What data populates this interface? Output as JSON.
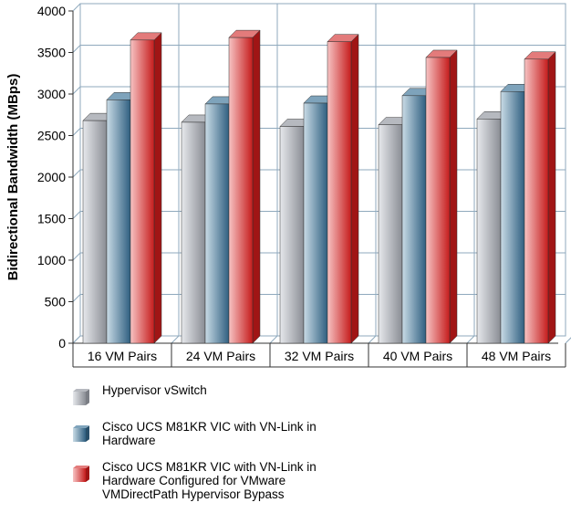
{
  "chart_data": {
    "type": "bar",
    "title": "",
    "xlabel": "",
    "ylabel": "Bidirectional Bandwidth (MBps)",
    "ylim": [
      0,
      4000
    ],
    "yticks": [
      0,
      500,
      1000,
      1500,
      2000,
      2500,
      3000,
      3500,
      4000
    ],
    "grid": true,
    "legend_position": "bottom",
    "categories": [
      "16 VM Pairs",
      "24 VM Pairs",
      "32 VM Pairs",
      "40 VM Pairs",
      "48 VM Pairs"
    ],
    "series": [
      {
        "name": "Hypervisor vSwitch",
        "values": [
          2680,
          2660,
          2610,
          2630,
          2700
        ]
      },
      {
        "name": "Cisco UCS M81KR VIC with VN-Link in Hardware",
        "values": [
          2930,
          2880,
          2890,
          2980,
          3030
        ]
      },
      {
        "name": "Cisco UCS M81KR VIC with VN-Link in Hardware Configured for VMware VMDirectPath Hypervisor Bypass",
        "values": [
          3650,
          3680,
          3630,
          3440,
          3420
        ]
      }
    ]
  },
  "legend": [
    {
      "label": "Hypervisor vSwitch",
      "color_light": "#e6e8ec",
      "color_dark": "#8a8d94"
    },
    {
      "label": "Cisco UCS M81KR VIC with VN-Link in\nHardware",
      "color_light": "#c9dbe6",
      "color_dark": "#2f5f80"
    },
    {
      "label": "Cisco UCS M81KR VIC with VN-Link in\nHardware Configured for VMware\nVMDirectPath Hypervisor Bypass",
      "color_light": "#f7c3c3",
      "color_dark": "#c51c1c"
    }
  ]
}
